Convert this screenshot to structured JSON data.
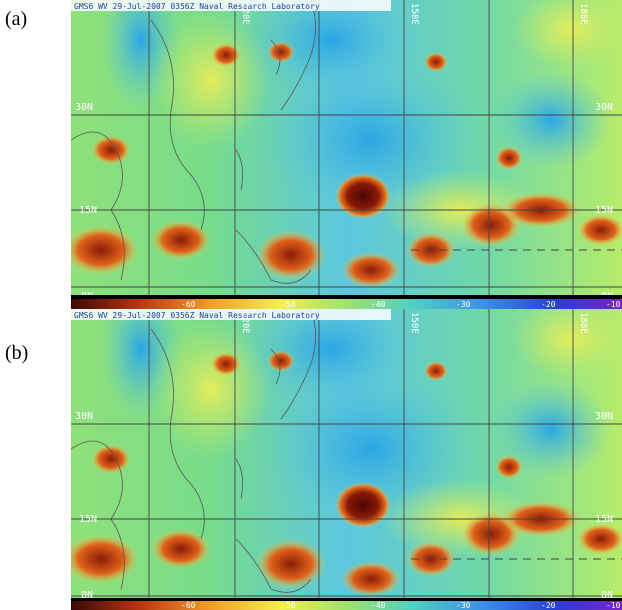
{
  "figure": {
    "panels": [
      {
        "label": "(a)",
        "header": "GMS6 WV 29-Jul-2007 0356Z Naval Research Laboratory",
        "lat_labels": [
          "30N",
          "15N",
          "0N"
        ],
        "lon_labels": [
          "120E",
          "150E",
          "180E"
        ],
        "colorbar_ticks": [
          "-60",
          "-50",
          "-40",
          "-30",
          "-20",
          "-10"
        ]
      },
      {
        "label": "(b)",
        "header": "GMS6 WV 29-Jul-2007 0356Z Naval Research Laboratory",
        "lat_labels": [
          "30N",
          "15N",
          "0N"
        ],
        "lon_labels": [
          "120E",
          "150E",
          "180E"
        ],
        "colorbar_ticks": [
          "-60",
          "-50",
          "-40",
          "-30",
          "-20",
          "-10"
        ]
      }
    ],
    "palette": {
      "ocean_dry": "#2fb4e8",
      "moist": "#7be27f",
      "moderate": "#d8ec5a",
      "convective": "#e5741c",
      "deep_convection": "#6b0d05",
      "grid": "#444444",
      "label_text": "#ffffff"
    }
  }
}
